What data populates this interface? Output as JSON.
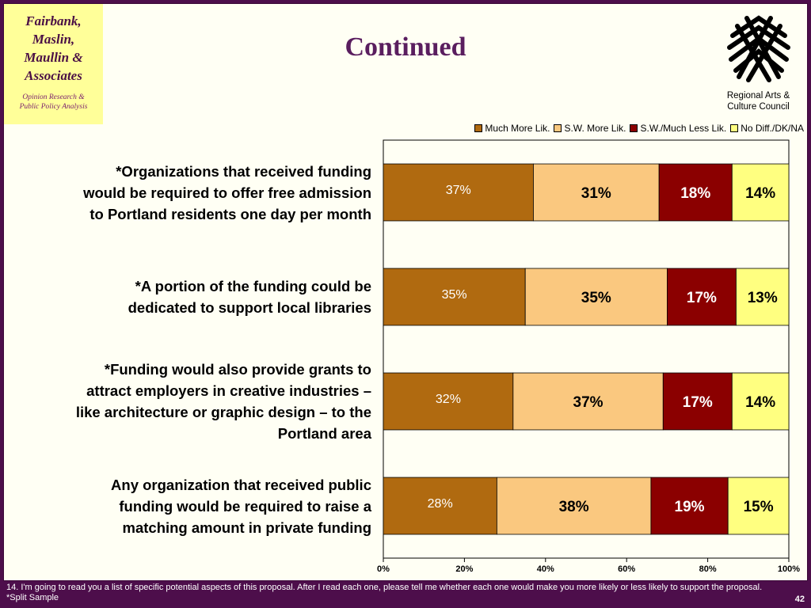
{
  "header": {
    "title": "Continued",
    "fma_logo_lines": [
      "Fairbank,",
      "Maslin,",
      "Maullin &",
      "Associates"
    ],
    "fma_tagline_lines": [
      "Opinion Research &",
      "Public Policy Analysis"
    ],
    "racc_caption_lines": [
      "Regional Arts &",
      "Culture Council"
    ]
  },
  "chart_data": {
    "type": "bar",
    "orientation": "horizontal",
    "stacked": true,
    "categories": [
      "*Organizations that received funding would be required to offer free admission to Portland residents one day per month",
      "*A portion of the funding could be dedicated to support local libraries",
      "*Funding would also provide grants to attract employers in creative industries – like architecture or graphic design – to the Portland area",
      "Any organization that received public funding would be required to raise a matching amount in private funding"
    ],
    "category_lines": [
      [
        "*Organizations that received funding",
        "would be required to offer free admission",
        "to Portland residents one day per month"
      ],
      [
        "*A portion of the funding could be",
        "dedicated to support local libraries"
      ],
      [
        "*Funding would also provide grants to",
        "attract employers in creative industries –",
        "like architecture or graphic design – to the",
        "Portland area"
      ],
      [
        "Any organization that received public",
        "funding would be required to raise a",
        "matching amount in private funding"
      ]
    ],
    "series": [
      {
        "name": "Much More Lik.",
        "values": [
          37,
          35,
          32,
          28
        ],
        "labels": [
          "37%",
          "35%",
          "32%",
          "28%"
        ],
        "color": "#b06a10",
        "label_color": "#ffffff"
      },
      {
        "name": "S.W. More Lik.",
        "values": [
          31,
          35,
          37,
          38
        ],
        "labels": [
          "31%",
          "35%",
          "37%",
          "38%"
        ],
        "color": "#fac87f",
        "label_color": "#000000"
      },
      {
        "name": "S.W./Much Less Lik.",
        "values": [
          18,
          17,
          17,
          19
        ],
        "labels": [
          "18%",
          "17%",
          "17%",
          "19%"
        ],
        "color": "#8b0000",
        "label_color": "#ffffff"
      },
      {
        "name": "No Diff./DK/NA",
        "values": [
          14,
          13,
          14,
          15
        ],
        "labels": [
          "14%",
          "13%",
          "14%",
          "15%"
        ],
        "color": "#ffff80",
        "label_color": "#000000"
      }
    ],
    "xlim": [
      0,
      100
    ],
    "x_ticks": [
      0,
      20,
      40,
      60,
      80,
      100
    ],
    "x_tick_labels": [
      "0%",
      "20%",
      "40%",
      "60%",
      "80%",
      "100%"
    ],
    "legend_position": "top-right",
    "grid": false
  },
  "footer": {
    "footnote": "14. I'm going to read you a list of specific potential aspects of this proposal.  After I read each one, please tell me whether each one would make you more likely or less likely to support the proposal.  *Split Sample",
    "page_number": "42"
  },
  "colors": {
    "background": "#4d0e4b",
    "slide": "#fffff4",
    "title": "#5a1e5f",
    "fma_logo_bg": "#ffff99"
  }
}
